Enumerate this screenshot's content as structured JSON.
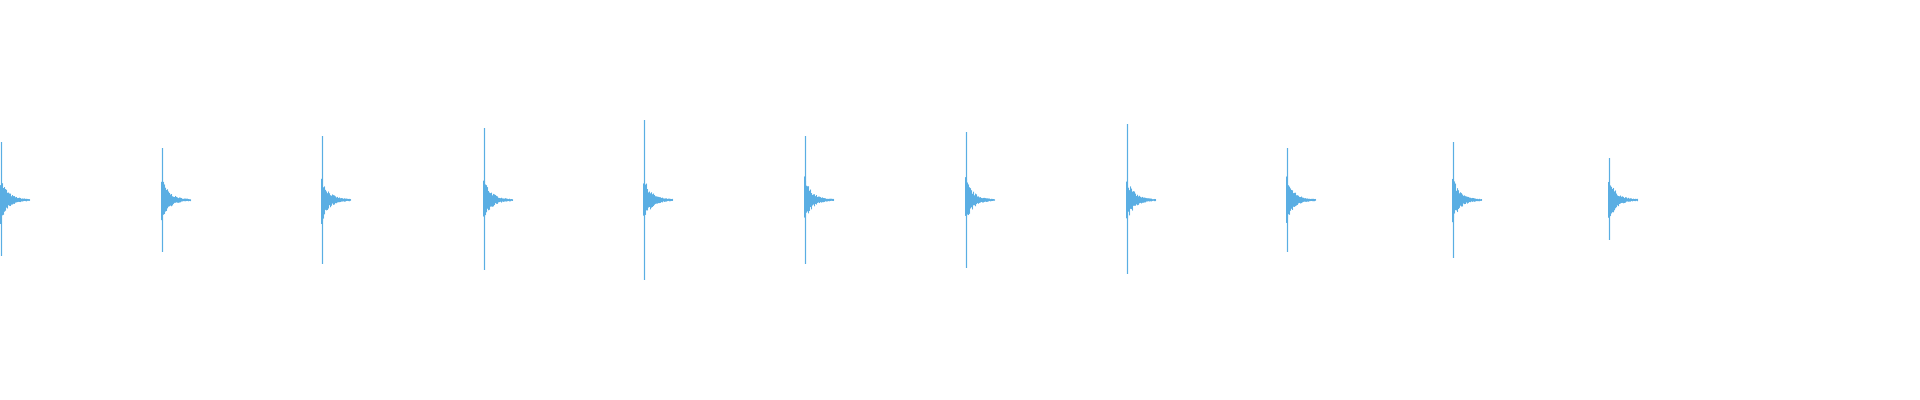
{
  "waveform": {
    "color": "#5aaee3",
    "background": "#ffffff",
    "clicks": [
      {
        "peak_pos": 0.29,
        "peak_neg": 0.28
      },
      {
        "peak_pos": 0.26,
        "peak_neg": 0.26
      },
      {
        "peak_pos": 0.32,
        "peak_neg": 0.32
      },
      {
        "peak_pos": 0.36,
        "peak_neg": 0.35
      },
      {
        "peak_pos": 0.4,
        "peak_neg": 0.4
      },
      {
        "peak_pos": 0.32,
        "peak_neg": 0.32
      },
      {
        "peak_pos": 0.34,
        "peak_neg": 0.34
      },
      {
        "peak_pos": 0.38,
        "peak_neg": 0.37
      },
      {
        "peak_pos": 0.26,
        "peak_neg": 0.26
      },
      {
        "peak_pos": 0.29,
        "peak_neg": 0.29
      },
      {
        "peak_pos": 0.21,
        "peak_neg": 0.2
      }
    ]
  }
}
